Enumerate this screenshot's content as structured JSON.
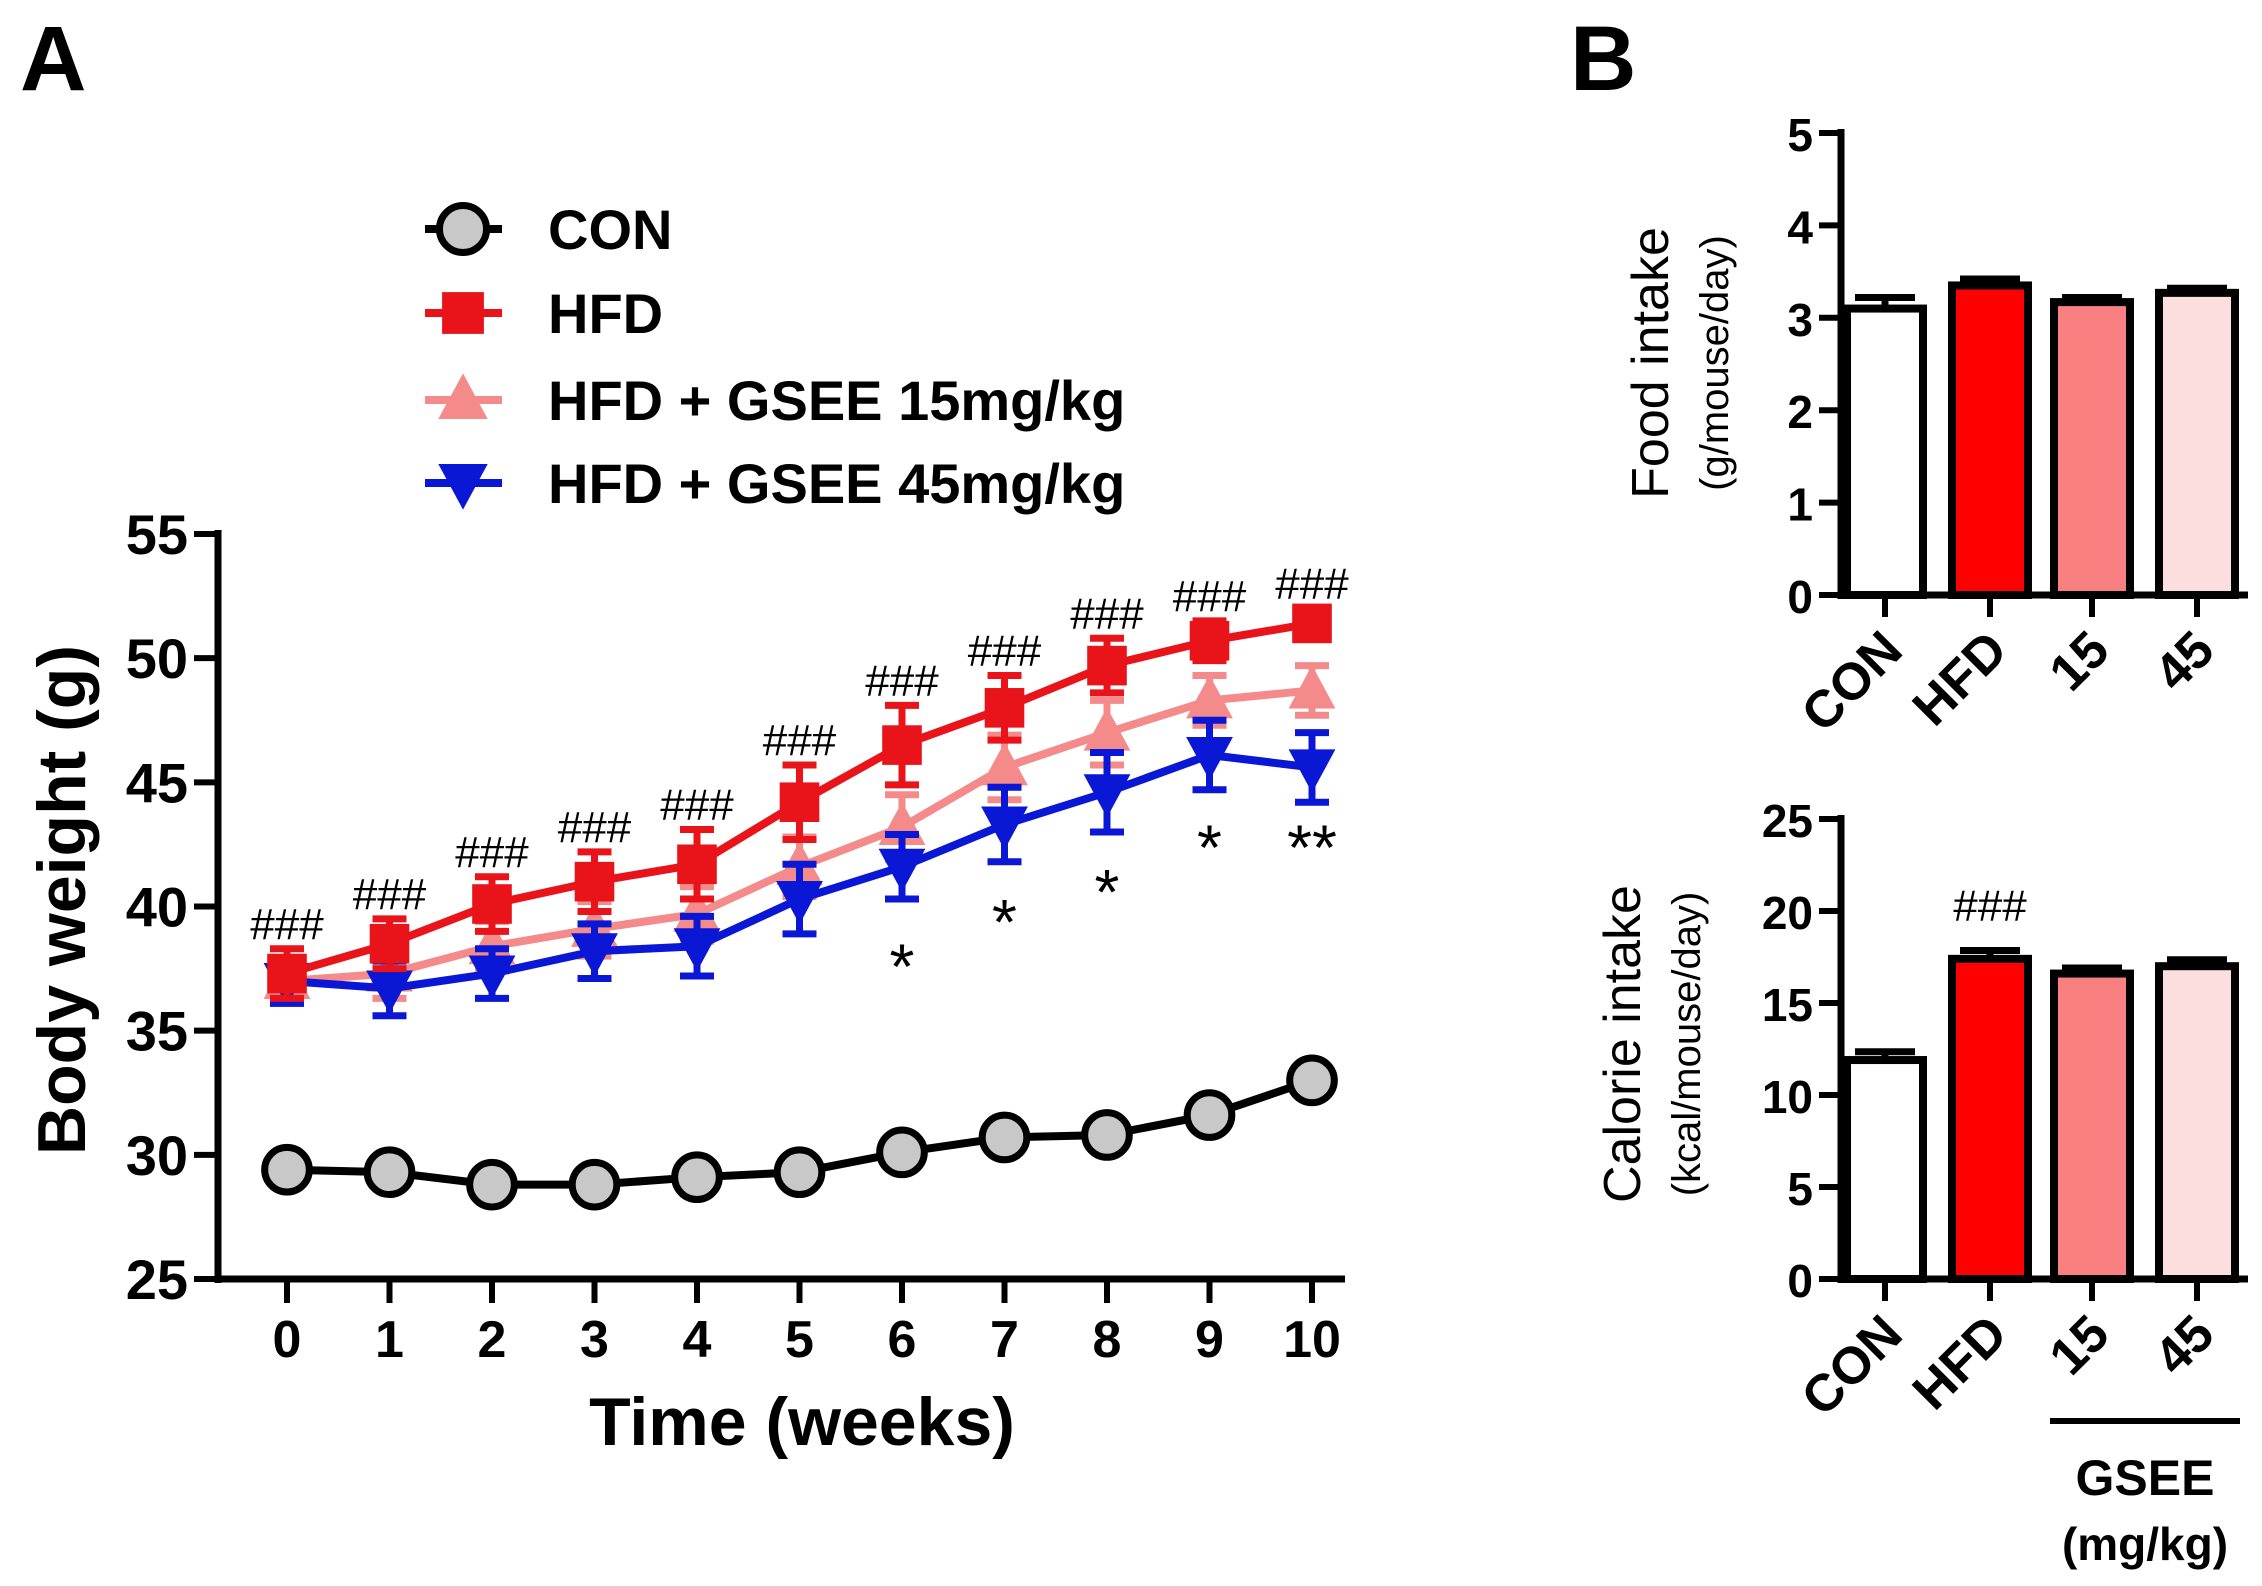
{
  "panels": {
    "a_label": "A",
    "b_label": "B"
  },
  "chart_data": [
    {
      "type": "line",
      "title": "",
      "xlabel": "Time (weeks)",
      "ylabel": "Body weight (g)",
      "x": [
        0,
        1,
        2,
        3,
        4,
        5,
        6,
        7,
        8,
        9,
        10
      ],
      "x_tick_labels": [
        "0",
        "1",
        "2",
        "3",
        "4",
        "5",
        "6",
        "7",
        "8",
        "9",
        "10"
      ],
      "y_ticks": [
        25,
        30,
        35,
        40,
        45,
        50,
        55
      ],
      "y_tick_labels": [
        "25",
        "30",
        "35",
        "40",
        "45",
        "50",
        "55"
      ],
      "ylim": [
        25,
        55
      ],
      "xlim": [
        -0.5,
        10.5
      ],
      "legend_position": "top",
      "series": [
        {
          "name": "CON",
          "marker": "circle",
          "color": "#000000",
          "fill": "#c8c8c8",
          "values": [
            29.4,
            29.3,
            28.8,
            28.8,
            29.1,
            29.3,
            30.1,
            30.7,
            30.8,
            31.6,
            33.0
          ],
          "errors": [
            0.6,
            0.6,
            0.3,
            0.5,
            0.6,
            0.3,
            0.6,
            0.6,
            0.6,
            0.6,
            0.6
          ]
        },
        {
          "name": "HFD",
          "marker": "square",
          "color": "#e8141a",
          "fill": "#e8141a",
          "values": [
            37.3,
            38.5,
            40.1,
            41.0,
            41.7,
            44.2,
            46.5,
            48.0,
            49.7,
            50.7,
            51.4
          ],
          "errors": [
            1.0,
            1.0,
            1.1,
            1.2,
            1.4,
            1.5,
            1.6,
            1.3,
            1.1,
            0.8,
            0.6
          ]
        },
        {
          "name": "HFD + GSEE 15mg/kg",
          "marker": "triangle-up",
          "color": "#f48a8a",
          "fill": "#f48a8a",
          "values": [
            37.0,
            37.3,
            38.4,
            39.1,
            39.7,
            41.6,
            43.2,
            45.6,
            47.0,
            48.3,
            48.7
          ],
          "errors": [
            0.9,
            1.0,
            1.0,
            1.1,
            1.1,
            1.2,
            1.3,
            1.3,
            1.3,
            1.0,
            1.0
          ]
        },
        {
          "name": "HFD + GSEE 45mg/kg",
          "marker": "triangle-down",
          "color": "#0a17d4",
          "fill": "#0a17d4",
          "values": [
            37.0,
            36.7,
            37.3,
            38.2,
            38.4,
            40.3,
            41.6,
            43.3,
            44.6,
            46.1,
            45.6
          ],
          "errors": [
            0.9,
            1.1,
            1.0,
            1.1,
            1.2,
            1.4,
            1.3,
            1.5,
            1.6,
            1.4,
            1.4
          ]
        }
      ],
      "annotations": [
        {
          "x": 0,
          "y": 38.7,
          "text": "###"
        },
        {
          "x": 1,
          "y": 39.9,
          "text": "###"
        },
        {
          "x": 2,
          "y": 41.6,
          "text": "###"
        },
        {
          "x": 3,
          "y": 42.6,
          "text": "###"
        },
        {
          "x": 4,
          "y": 43.5,
          "text": "###"
        },
        {
          "x": 5,
          "y": 46.1,
          "text": "###"
        },
        {
          "x": 6,
          "y": 48.5,
          "text": "###"
        },
        {
          "x": 7,
          "y": 49.7,
          "text": "###"
        },
        {
          "x": 8,
          "y": 51.2,
          "text": "###"
        },
        {
          "x": 9,
          "y": 51.9,
          "text": "###"
        },
        {
          "x": 10,
          "y": 52.4,
          "text": "###"
        },
        {
          "x": 6,
          "y": 37.9,
          "text": "*"
        },
        {
          "x": 7,
          "y": 39.7,
          "text": "*"
        },
        {
          "x": 8,
          "y": 40.9,
          "text": "*"
        },
        {
          "x": 9,
          "y": 42.7,
          "text": "*"
        },
        {
          "x": 10,
          "y": 42.7,
          "text": "**"
        }
      ]
    },
    {
      "type": "bar",
      "ylabel": "Food intake",
      "ylabel_sub": "(g/mouse/day)",
      "categories": [
        "CON",
        "HFD",
        "15",
        "45"
      ],
      "values": [
        3.1,
        3.35,
        3.17,
        3.27
      ],
      "errors": [
        0.12,
        0.07,
        0.05,
        0.05
      ],
      "colors": [
        "#ffffff",
        "#ff0000",
        "#f88080",
        "#fcdede"
      ],
      "y_ticks": [
        0,
        1,
        2,
        3,
        4,
        5
      ],
      "y_tick_labels": [
        "0",
        "1",
        "2",
        "3",
        "4",
        "5"
      ],
      "ylim": [
        0,
        5
      ]
    },
    {
      "type": "bar",
      "ylabel": "Calorie intake",
      "ylabel_sub": "(kcal/mouse/day)",
      "categories": [
        "CON",
        "HFD",
        "15",
        "45"
      ],
      "values": [
        11.9,
        17.4,
        16.6,
        17.0
      ],
      "errors": [
        0.45,
        0.45,
        0.3,
        0.35
      ],
      "colors": [
        "#ffffff",
        "#ff0000",
        "#f88080",
        "#fcdede"
      ],
      "y_ticks": [
        0,
        5,
        10,
        15,
        20,
        25
      ],
      "y_tick_labels": [
        "0",
        "5",
        "10",
        "15",
        "20",
        "25"
      ],
      "ylim": [
        0,
        25
      ],
      "annotations": [
        {
          "category": "HFD",
          "text": "###"
        }
      ],
      "group_label": "GSEE",
      "group_sublabel": "(mg/kg)"
    }
  ]
}
